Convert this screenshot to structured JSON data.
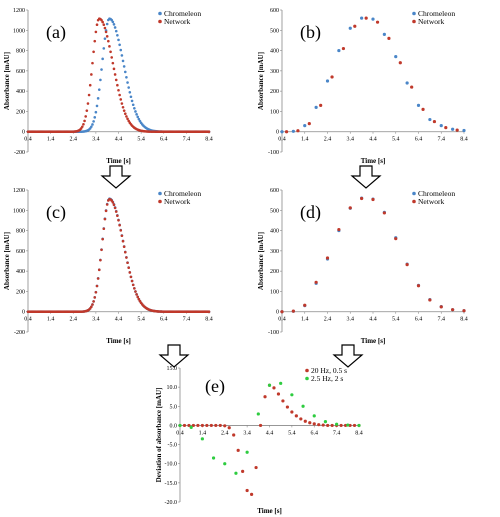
{
  "chart_data": [
    {
      "type": "scatter",
      "panel_label": "(a)",
      "xlabel": "Time [s]",
      "ylabel": "Absorbance [mAU]",
      "xlim": [
        0.4,
        8.4
      ],
      "ylim": [
        -200,
        1200
      ],
      "x_ticks": [
        "0.4",
        "1.4",
        "2.4",
        "3.4",
        "4.4",
        "5.4",
        "6.4",
        "7.4",
        "8.4"
      ],
      "y_ticks": [
        "-200",
        "0",
        "200",
        "400",
        "600",
        "800",
        "1000",
        "1200"
      ],
      "grid": false,
      "legend": "top-right",
      "series": [
        {
          "name": "Chromeleon",
          "color": "#4a86c8",
          "peak": {
            "center": 4.0,
            "height": 1115,
            "sigma_left": 0.32,
            "sigma_right": 0.62
          }
        },
        {
          "name": "Network",
          "color": "#c0392b",
          "peak": {
            "center": 3.55,
            "height": 1115,
            "sigma_left": 0.3,
            "sigma_right": 0.6
          }
        }
      ]
    },
    {
      "type": "scatter",
      "panel_label": "(b)",
      "xlabel": "Time [s]",
      "ylabel": "Absorbance [mAU]",
      "xlim": [
        0.4,
        8.4
      ],
      "ylim": [
        -100,
        600
      ],
      "x_ticks": [
        "0.4",
        "1.4",
        "2.4",
        "3.4",
        "4.4",
        "5.4",
        "6.4",
        "7.4",
        "8.4"
      ],
      "y_ticks": [
        "-100",
        "0",
        "100",
        "200",
        "300",
        "400",
        "500",
        "600"
      ],
      "grid": false,
      "legend": "top-right",
      "series": [
        {
          "name": "Chromeleon",
          "color": "#4a86c8",
          "x": [
            0.4,
            0.9,
            1.4,
            1.9,
            2.4,
            2.9,
            3.4,
            3.9,
            4.4,
            4.9,
            5.4,
            5.9,
            6.4,
            6.9,
            7.4,
            7.9,
            8.4
          ],
          "y": [
            0,
            2,
            30,
            120,
            250,
            400,
            510,
            560,
            555,
            480,
            370,
            240,
            130,
            60,
            30,
            12,
            6
          ]
        },
        {
          "name": "Network",
          "color": "#c0392b",
          "x": [
            0.6,
            1.1,
            1.6,
            2.1,
            2.6,
            3.1,
            3.6,
            4.1,
            4.6,
            5.1,
            5.6,
            6.1,
            6.6,
            7.1,
            7.6,
            8.1
          ],
          "y": [
            0,
            5,
            40,
            130,
            270,
            410,
            520,
            560,
            540,
            460,
            340,
            220,
            110,
            50,
            20,
            8
          ]
        }
      ]
    },
    {
      "type": "scatter",
      "panel_label": "(c)",
      "xlabel": "Time [s]",
      "ylabel": "Absorbance [mAU]",
      "xlim": [
        0.4,
        8.4
      ],
      "ylim": [
        -200,
        1200
      ],
      "x_ticks": [
        "0.4",
        "1.4",
        "2.4",
        "3.4",
        "4.4",
        "5.4",
        "6.4",
        "7.4",
        "8.4"
      ],
      "y_ticks": [
        "-200",
        "0",
        "200",
        "400",
        "600",
        "800",
        "1000",
        "1200"
      ],
      "grid": false,
      "legend": "top-right",
      "series": [
        {
          "name": "Chromeleon",
          "color": "#4a86c8",
          "peak": {
            "center": 4.0,
            "height": 1115,
            "sigma_left": 0.32,
            "sigma_right": 0.62
          }
        },
        {
          "name": "Network",
          "color": "#c0392b",
          "peak": {
            "center": 4.0,
            "height": 1110,
            "sigma_left": 0.32,
            "sigma_right": 0.62
          }
        }
      ]
    },
    {
      "type": "scatter",
      "panel_label": "(d)",
      "xlabel": "Time [s]",
      "ylabel": "Absorbance [mAU]",
      "xlim": [
        0.4,
        8.4
      ],
      "ylim": [
        -100,
        600
      ],
      "x_ticks": [
        "0.4",
        "1.4",
        "2.4",
        "3.4",
        "4.4",
        "5.4",
        "6.4",
        "7.4",
        "8.4"
      ],
      "y_ticks": [
        "-100",
        "0",
        "100",
        "200",
        "300",
        "400",
        "500",
        "600"
      ],
      "grid": false,
      "legend": "top-right",
      "series": [
        {
          "name": "Chromeleon",
          "color": "#4a86c8",
          "x": [
            0.4,
            0.9,
            1.4,
            1.9,
            2.4,
            2.9,
            3.4,
            3.9,
            4.4,
            4.9,
            5.4,
            5.9,
            6.4,
            6.9,
            7.4,
            7.9,
            8.4
          ],
          "y": [
            0,
            2,
            30,
            140,
            260,
            400,
            510,
            560,
            555,
            490,
            365,
            235,
            130,
            60,
            25,
            10,
            5
          ]
        },
        {
          "name": "Network",
          "color": "#c0392b",
          "x": [
            0.4,
            0.9,
            1.4,
            1.9,
            2.4,
            2.9,
            3.4,
            3.9,
            4.4,
            4.9,
            5.4,
            5.9,
            6.4,
            6.9,
            7.4,
            7.9,
            8.4
          ],
          "y": [
            0,
            3,
            32,
            145,
            265,
            405,
            512,
            558,
            553,
            487,
            360,
            232,
            128,
            58,
            24,
            10,
            5
          ]
        }
      ]
    },
    {
      "type": "scatter",
      "panel_label": "(e)",
      "xlabel": "Time [s]",
      "ylabel": "Deviation of absorbance [mAU]",
      "xlim": [
        0.4,
        8.4
      ],
      "ylim": [
        -20,
        15
      ],
      "x_ticks": [
        "0.4",
        "1.4",
        "2.4",
        "3.4",
        "4.4",
        "5.4",
        "6.4",
        "7.4",
        "8.4"
      ],
      "y_ticks": [
        "-20.0",
        "-15.0",
        "-10.0",
        "-5.0",
        "0.0",
        "5.0",
        "10.0",
        "15.0"
      ],
      "grid": false,
      "legend": "top-right",
      "series": [
        {
          "name": "20 Hz, 0.5 s",
          "color": "#c0392b",
          "x": [
            0.4,
            0.6,
            0.8,
            1.0,
            1.2,
            1.4,
            1.6,
            1.8,
            2.0,
            2.2,
            2.4,
            2.6,
            2.8,
            3.0,
            3.2,
            3.4,
            3.6,
            3.8,
            4.0,
            4.2,
            4.4,
            4.6,
            4.8,
            5.0,
            5.2,
            5.4,
            5.6,
            5.8,
            6.0,
            6.2,
            6.4,
            6.6,
            6.8,
            7.0,
            7.2,
            7.4,
            7.6,
            7.8,
            8.0,
            8.2,
            8.4
          ],
          "y": [
            0,
            0,
            0,
            0,
            0,
            0,
            0,
            0,
            0,
            0,
            -0.1,
            -0.6,
            -2.5,
            -6.5,
            -12,
            -17,
            -18,
            -11,
            0,
            7.5,
            10.5,
            9.8,
            8.2,
            6.4,
            4.8,
            3.5,
            2.5,
            1.7,
            1.1,
            0.7,
            0.4,
            0.2,
            0.1,
            0,
            0,
            0,
            0,
            0,
            0,
            0,
            0
          ]
        },
        {
          "name": "2.5 Hz, 2 s",
          "color": "#2ecc40",
          "x": [
            0.4,
            0.9,
            1.4,
            1.9,
            2.4,
            2.9,
            3.4,
            3.9,
            4.4,
            4.9,
            5.4,
            5.9,
            6.4,
            6.9,
            7.4,
            7.9,
            8.4
          ],
          "y": [
            0,
            -0.5,
            -3.5,
            -8.5,
            -10,
            -12.5,
            -7,
            3,
            10.5,
            11,
            8,
            5,
            2.5,
            1,
            0.3,
            0.1,
            0
          ]
        }
      ]
    }
  ]
}
